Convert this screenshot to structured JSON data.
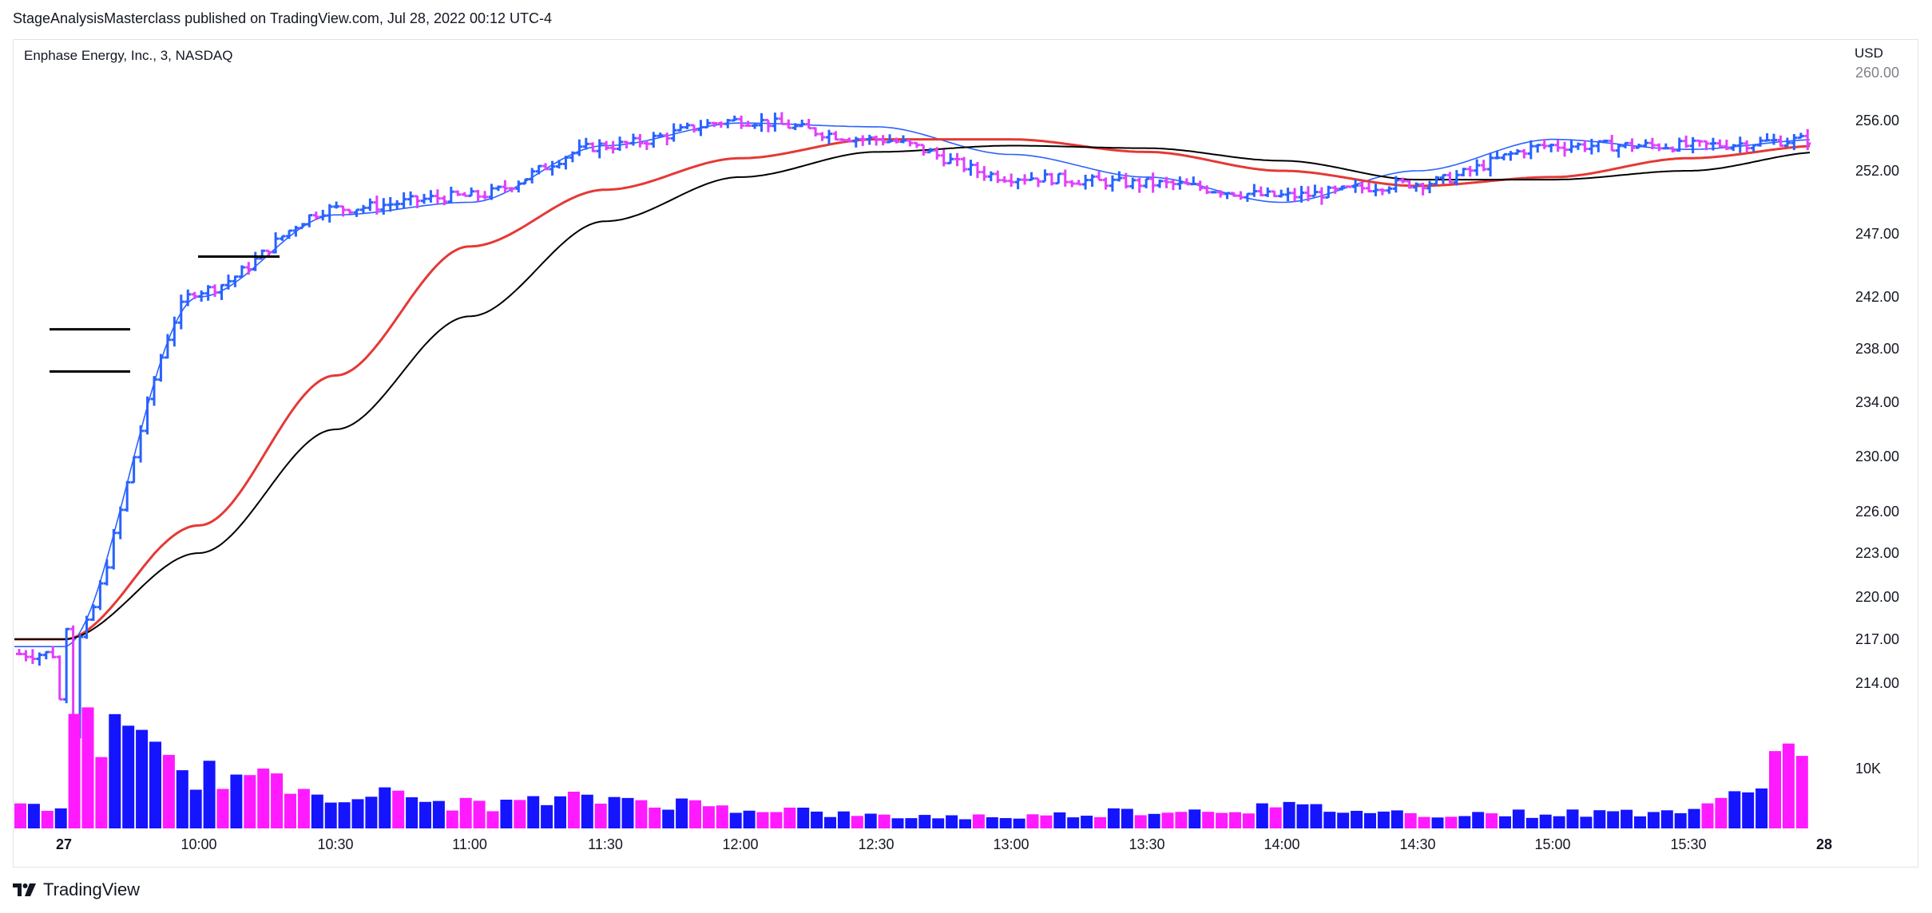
{
  "header": {
    "publish_line": "StageAnalysisMasterclass published on TradingView.com, Jul 28, 2022 00:12 UTC-4"
  },
  "chart_title": "Enphase Energy, Inc., 3, NASDAQ",
  "currency": "USD",
  "footer": {
    "brand": "TradingView",
    "logo_icon": "tradingview-logo-icon"
  },
  "colors": {
    "up_bar": "#2962ff",
    "down_bar": "#e040fb",
    "volume_up": "#1414ff",
    "volume_down": "#ff1aff",
    "ma_fast": "#2962ff",
    "ma_mid": "#e53935",
    "ma_slow": "#000000"
  },
  "chart_data": {
    "type": "ohlc",
    "title": "Enphase Energy, Inc., 3, NASDAQ",
    "price_axis_ticks": [
      "260.00",
      "256.00",
      "252.00",
      "247.00",
      "242.00",
      "238.00",
      "234.00",
      "230.00",
      "226.00",
      "223.00",
      "220.00",
      "217.00",
      "214.00"
    ],
    "volume_axis_ticks": [
      "10K"
    ],
    "time_axis_ticks": [
      "27",
      "10:00",
      "10:30",
      "11:00",
      "11:30",
      "12:00",
      "12:30",
      "13:00",
      "13:30",
      "14:00",
      "14:30",
      "15:00",
      "15:30",
      "28"
    ],
    "grid": false,
    "legend": "none",
    "price_close_points": [
      [
        "27",
        216.0
      ],
      [
        "10:00",
        242.5
      ],
      [
        "10:30",
        249.0
      ],
      [
        "11:00",
        250.0
      ],
      [
        "11:30",
        254.0
      ],
      [
        "12:00",
        256.0
      ],
      [
        "12:30",
        254.5
      ],
      [
        "13:00",
        251.5
      ],
      [
        "13:30",
        251.0
      ],
      [
        "14:00",
        250.0
      ],
      [
        "14:30",
        251.0
      ],
      [
        "15:00",
        254.0
      ],
      [
        "15:30",
        254.0
      ],
      [
        "28",
        254.5
      ]
    ],
    "moving_averages": [
      {
        "color": "blue",
        "points": [
          [
            "27",
            216.5
          ],
          [
            "10:00",
            242.0
          ],
          [
            "10:30",
            248.5
          ],
          [
            "11:00",
            249.5
          ],
          [
            "11:30",
            254.0
          ],
          [
            "12:00",
            255.8
          ],
          [
            "12:30",
            255.5
          ],
          [
            "13:00",
            253.3
          ],
          [
            "13:30",
            251.5
          ],
          [
            "14:00",
            249.5
          ],
          [
            "14:30",
            252.0
          ],
          [
            "15:00",
            254.5
          ],
          [
            "15:30",
            253.7
          ],
          [
            "28",
            254.5
          ]
        ]
      },
      {
        "color": "red",
        "points": [
          [
            "27",
            217.0
          ],
          [
            "10:00",
            225.0
          ],
          [
            "10:30",
            236.0
          ],
          [
            "11:00",
            246.0
          ],
          [
            "11:30",
            250.5
          ],
          [
            "12:00",
            253.0
          ],
          [
            "12:30",
            254.5
          ],
          [
            "13:00",
            254.5
          ],
          [
            "13:30",
            253.5
          ],
          [
            "14:00",
            252.0
          ],
          [
            "14:30",
            250.8
          ],
          [
            "15:00",
            251.5
          ],
          [
            "15:30",
            253.0
          ],
          [
            "28",
            254.0
          ]
        ]
      },
      {
        "color": "black",
        "points": [
          [
            "27",
            217.0
          ],
          [
            "10:00",
            223.0
          ],
          [
            "10:30",
            232.0
          ],
          [
            "11:00",
            240.5
          ],
          [
            "11:30",
            248.0
          ],
          [
            "12:00",
            251.5
          ],
          [
            "12:30",
            253.5
          ],
          [
            "13:00",
            254.0
          ],
          [
            "13:30",
            253.8
          ],
          [
            "14:00",
            252.8
          ],
          [
            "14:30",
            251.3
          ],
          [
            "15:00",
            251.3
          ],
          [
            "15:30",
            252.0
          ],
          [
            "28",
            253.5
          ]
        ]
      }
    ],
    "volume_points_k": [
      [
        "27",
        18.0
      ],
      [
        "10:00",
        9.0
      ],
      [
        "10:30",
        6.0
      ],
      [
        "11:00",
        4.0
      ],
      [
        "11:30",
        5.0
      ],
      [
        "12:00",
        3.5
      ],
      [
        "12:30",
        2.0
      ],
      [
        "13:00",
        2.0
      ],
      [
        "13:30",
        3.0
      ],
      [
        "14:00",
        3.5
      ],
      [
        "14:30",
        2.5
      ],
      [
        "15:00",
        2.5
      ],
      [
        "15:30",
        3.0
      ],
      [
        "28",
        16.0
      ]
    ]
  }
}
